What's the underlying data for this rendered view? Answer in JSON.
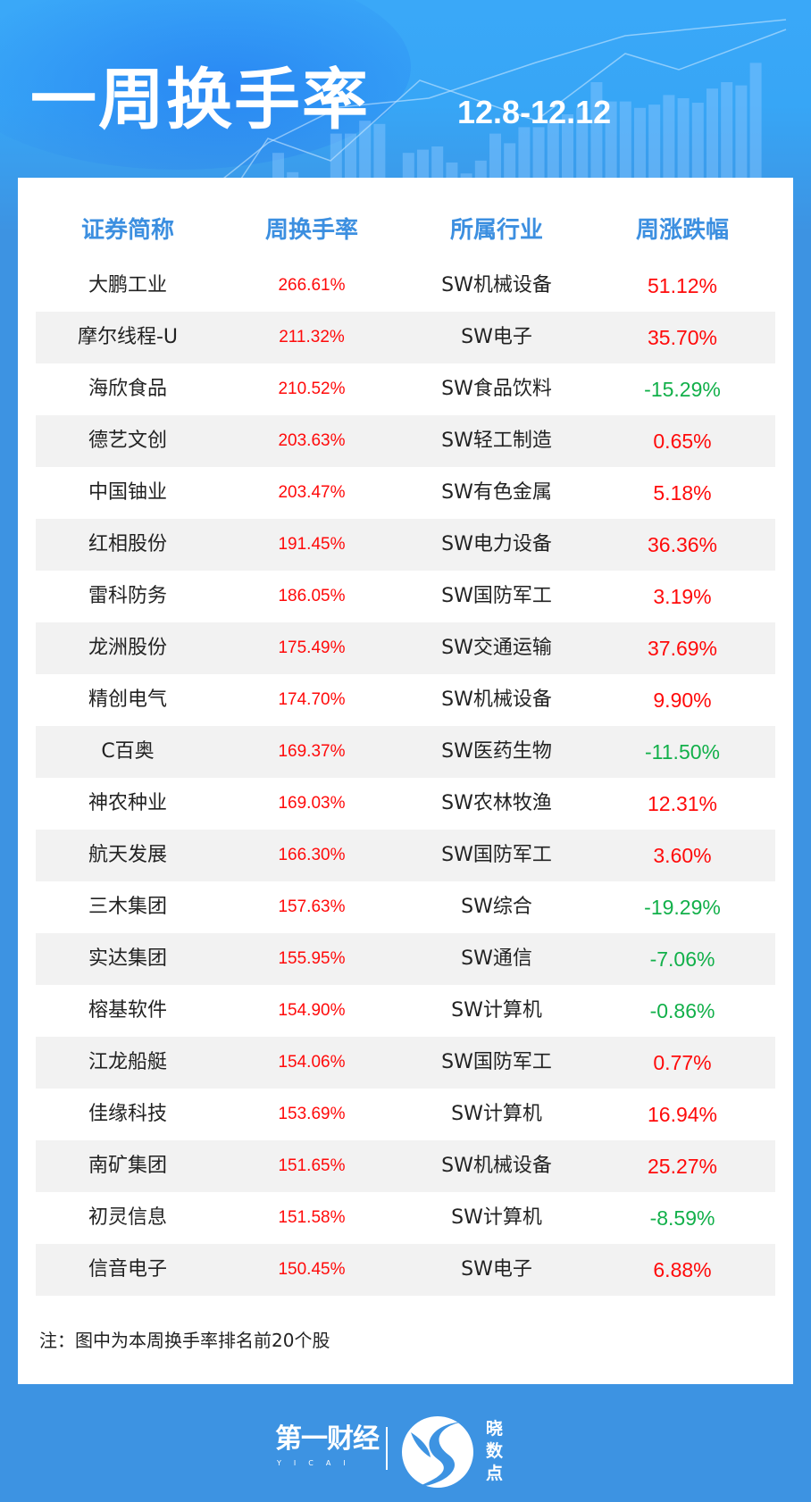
{
  "header": {
    "title": "一周换手率",
    "date_range": "12.8-12.12"
  },
  "table": {
    "columns": [
      "证券简称",
      "周换手率",
      "所属行业",
      "周涨跌幅"
    ],
    "rows": [
      {
        "name": "大鹏工业",
        "turnover": "266.61%",
        "industry": "SW机械设备",
        "change": "51.12%",
        "dir": "up"
      },
      {
        "name": "摩尔线程-U",
        "turnover": "211.32%",
        "industry": "SW电子",
        "change": "35.70%",
        "dir": "up"
      },
      {
        "name": "海欣食品",
        "turnover": "210.52%",
        "industry": "SW食品饮料",
        "change": "-15.29%",
        "dir": "down"
      },
      {
        "name": "德艺文创",
        "turnover": "203.63%",
        "industry": "SW轻工制造",
        "change": "0.65%",
        "dir": "up"
      },
      {
        "name": "中国铀业",
        "turnover": "203.47%",
        "industry": "SW有色金属",
        "change": "5.18%",
        "dir": "up"
      },
      {
        "name": "红相股份",
        "turnover": "191.45%",
        "industry": "SW电力设备",
        "change": "36.36%",
        "dir": "up"
      },
      {
        "name": "雷科防务",
        "turnover": "186.05%",
        "industry": "SW国防军工",
        "change": "3.19%",
        "dir": "up"
      },
      {
        "name": "龙洲股份",
        "turnover": "175.49%",
        "industry": "SW交通运输",
        "change": "37.69%",
        "dir": "up"
      },
      {
        "name": "精创电气",
        "turnover": "174.70%",
        "industry": "SW机械设备",
        "change": "9.90%",
        "dir": "up"
      },
      {
        "name": "C百奥",
        "turnover": "169.37%",
        "industry": "SW医药生物",
        "change": "-11.50%",
        "dir": "down"
      },
      {
        "name": "神农种业",
        "turnover": "169.03%",
        "industry": "SW农林牧渔",
        "change": "12.31%",
        "dir": "up"
      },
      {
        "name": "航天发展",
        "turnover": "166.30%",
        "industry": "SW国防军工",
        "change": "3.60%",
        "dir": "up"
      },
      {
        "name": "三木集团",
        "turnover": "157.63%",
        "industry": "SW综合",
        "change": "-19.29%",
        "dir": "down"
      },
      {
        "name": "实达集团",
        "turnover": "155.95%",
        "industry": "SW通信",
        "change": "-7.06%",
        "dir": "down"
      },
      {
        "name": "榕基软件",
        "turnover": "154.90%",
        "industry": "SW计算机",
        "change": "-0.86%",
        "dir": "down"
      },
      {
        "name": "江龙船艇",
        "turnover": "154.06%",
        "industry": "SW国防军工",
        "change": "0.77%",
        "dir": "up"
      },
      {
        "name": "佳缘科技",
        "turnover": "153.69%",
        "industry": "SW计算机",
        "change": "16.94%",
        "dir": "up"
      },
      {
        "name": "南矿集团",
        "turnover": "151.65%",
        "industry": "SW机械设备",
        "change": "25.27%",
        "dir": "up"
      },
      {
        "name": "初灵信息",
        "turnover": "151.58%",
        "industry": "SW计算机",
        "change": "-8.59%",
        "dir": "down"
      },
      {
        "name": "信音电子",
        "turnover": "150.45%",
        "industry": "SW电子",
        "change": "6.88%",
        "dir": "up"
      }
    ]
  },
  "note": "注：图中为本周换手率排名前20个股",
  "footer": {
    "logo_yicai": "第一财经",
    "logo_yicai_sub": "YICAI",
    "logo_xiaoshudian": "晓数点"
  },
  "colors": {
    "accent": "#3c8fe0",
    "up": "#ff0a0a",
    "down": "#12b04a",
    "background": "#3d93e2"
  }
}
